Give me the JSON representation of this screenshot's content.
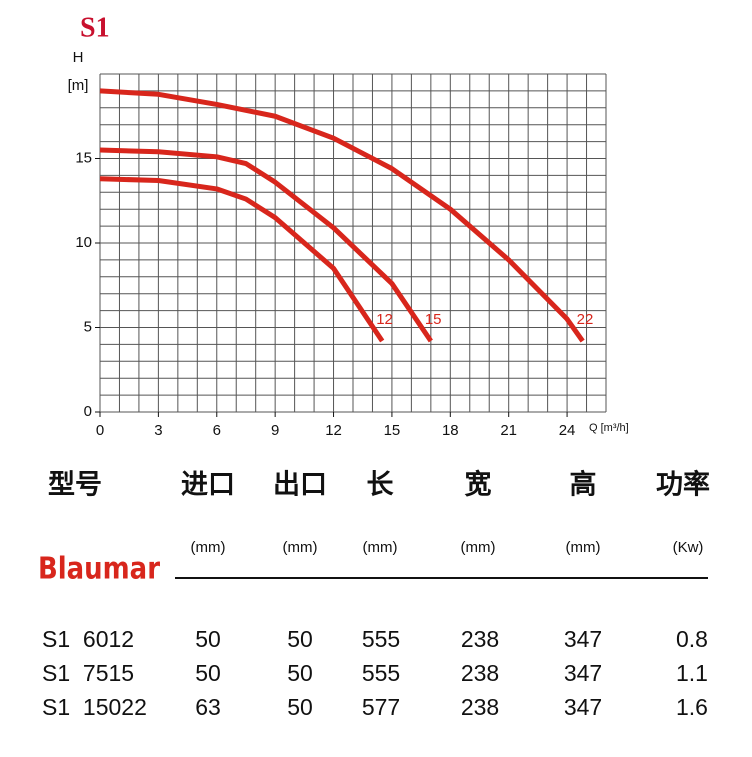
{
  "chart_data": {
    "type": "line",
    "title": "S1",
    "y_label": "H",
    "y_unit": "[m]",
    "x_label": "Q [m³/h]",
    "xlim": [
      0,
      26
    ],
    "ylim": [
      0,
      20
    ],
    "xticks": [
      0,
      3,
      6,
      9,
      12,
      15,
      18,
      21,
      24
    ],
    "yticks": [
      0,
      5,
      10,
      15
    ],
    "grid": true,
    "minor_grid_step": 1,
    "series": [
      {
        "name": "12",
        "color": "#d8261c",
        "x": [
          0,
          3,
          6,
          7.5,
          9,
          12,
          14.5
        ],
        "values": [
          13.8,
          13.7,
          13.2,
          12.6,
          11.5,
          8.5,
          4.2
        ]
      },
      {
        "name": "15",
        "color": "#d8261c",
        "x": [
          0,
          3,
          6,
          7.5,
          9,
          12,
          15,
          17
        ],
        "values": [
          15.5,
          15.4,
          15.1,
          14.7,
          13.6,
          10.9,
          7.6,
          4.2
        ]
      },
      {
        "name": "22",
        "color": "#d8261c",
        "x": [
          0,
          3,
          6,
          9,
          12,
          15,
          18,
          21,
          24,
          24.8
        ],
        "values": [
          19,
          18.8,
          18.2,
          17.5,
          16.2,
          14.4,
          12,
          9,
          5.5,
          4.2
        ]
      }
    ]
  },
  "table": {
    "headers": [
      "型号",
      "进口",
      "出口",
      "长",
      "宽",
      "高",
      "功率"
    ],
    "brand": "Blaumar",
    "units": [
      "(mm)",
      "(mm)",
      "(mm)",
      "(mm)",
      "(mm)",
      "(Kw)"
    ],
    "rows": [
      [
        "S1  6012",
        50,
        50,
        555,
        238,
        347,
        0.8
      ],
      [
        "S1  7515",
        50,
        50,
        555,
        238,
        347,
        1.1
      ],
      [
        "S1  15022",
        63,
        50,
        577,
        238,
        347,
        1.6
      ]
    ]
  }
}
